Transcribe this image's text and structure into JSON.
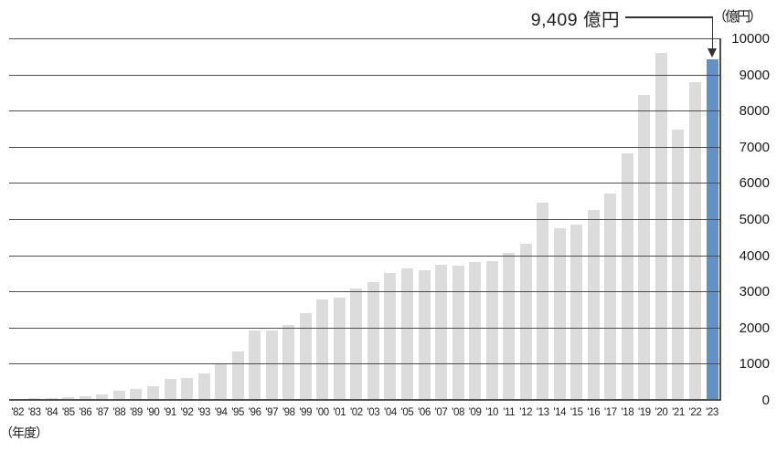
{
  "annotation": {
    "label": "9,409 億円"
  },
  "axis": {
    "unit_right": "（億円）",
    "unit_bottom": "（年度）"
  },
  "colors": {
    "bar": "#dcdcdc",
    "highlight": "#6491c3",
    "gridline": "#4d4d4d"
  },
  "chart_data": {
    "type": "bar",
    "title": "",
    "xlabel": "（年度）",
    "ylabel": "（億円）",
    "ylim": [
      0,
      10000
    ],
    "ytick_step": 1000,
    "ytick_labels": [
      "0",
      "1000",
      "2000",
      "3000",
      "4000",
      "5000",
      "6000",
      "7000",
      "8000",
      "9000",
      "10000"
    ],
    "grid": true,
    "legend": false,
    "categories": [
      "'82",
      "'83",
      "'84",
      "'85",
      "'86",
      "'87",
      "'88",
      "'89",
      "'90",
      "'91",
      "'92",
      "'93",
      "'94",
      "'95",
      "'96",
      "'97",
      "'98",
      "'99",
      "'00",
      "'01",
      "'02",
      "'03",
      "'04",
      "'05",
      "'06",
      "'07",
      "'08",
      "'09",
      "'10",
      "'11",
      "'12",
      "'13",
      "'14",
      "'15",
      "'16",
      "'17",
      "'18",
      "'19",
      "'20",
      "'21",
      "'22",
      "'23"
    ],
    "values": [
      30,
      45,
      60,
      80,
      110,
      160,
      260,
      310,
      370,
      570,
      600,
      740,
      980,
      1350,
      1920,
      1910,
      2070,
      2400,
      2790,
      2840,
      3090,
      3250,
      3520,
      3650,
      3580,
      3730,
      3710,
      3820,
      3830,
      4060,
      4330,
      5450,
      4750,
      4860,
      5260,
      5700,
      6810,
      8440,
      9600,
      7470,
      8790,
      9409
    ],
    "highlight_index": 41,
    "highlight_value_label": "9,409 億円",
    "annotation_target": "'23"
  }
}
